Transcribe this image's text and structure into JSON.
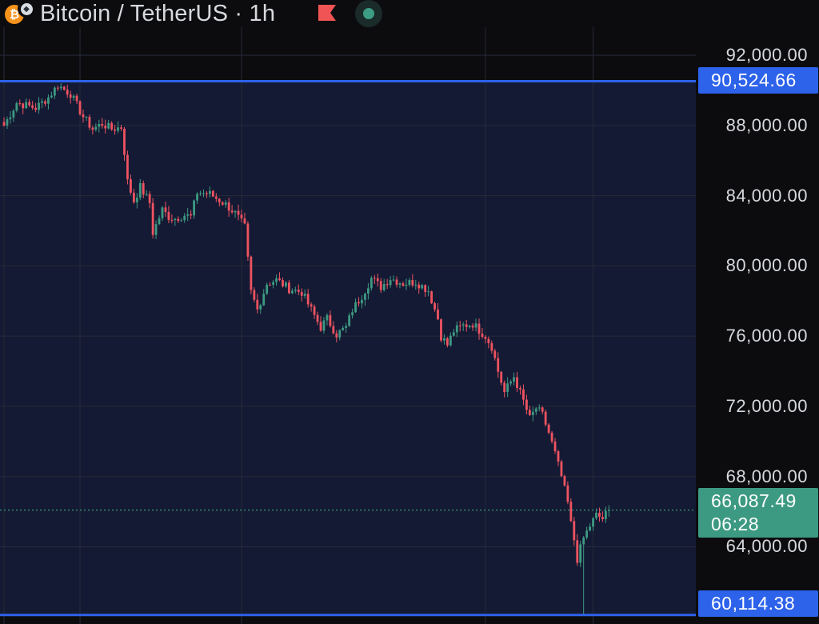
{
  "header": {
    "symbol": "Bitcoin / TetherUS",
    "interval": "1h",
    "title": "Bitcoin / TetherUS · 1h",
    "coin_icon": "bitcoin-icon",
    "badge_icon": "diamond-icon",
    "flag_icon": "flag-icon",
    "flag_color": "#f05454",
    "status_icon": "market-open-dot",
    "status_color": "#3d9c84"
  },
  "colors": {
    "background": "#0c0c0e",
    "highlight_zone": "#141a33",
    "up": "#3d9a82",
    "down": "#ef5361",
    "level_line": "#2d62ea",
    "grid": "#262b3a"
  },
  "price_labels": {
    "upper_level": "90,524.66",
    "lower_level": "60,114.38",
    "last_price": "66,087.49",
    "countdown": "06:28"
  },
  "chart_data": {
    "type": "candlestick",
    "title": "",
    "xlabel": "",
    "ylabel": "",
    "ylim": [
      59600,
      93600
    ],
    "grid": true,
    "y_ticks": [
      92000,
      88000,
      84000,
      80000,
      76000,
      72000,
      68000,
      64000
    ],
    "y_tick_labels": [
      "92,000.00",
      "88,000.00",
      "84,000.00",
      "80,000.00",
      "76,000.00",
      "72,000.00",
      "68,000.00",
      "64,000.00"
    ],
    "levels": [
      90524.66,
      60114.38
    ],
    "last_price": 66087.49,
    "x_ticks": [
      0,
      24,
      75,
      152,
      186
    ],
    "close_path": [
      [
        0,
        88000
      ],
      [
        4,
        89300
      ],
      [
        10,
        89000
      ],
      [
        14,
        89600
      ],
      [
        17,
        90300
      ],
      [
        21,
        89800
      ],
      [
        25,
        88500
      ],
      [
        28,
        87800
      ],
      [
        31,
        88100
      ],
      [
        34,
        87800
      ],
      [
        37,
        87900
      ],
      [
        38,
        86500
      ],
      [
        39,
        84800
      ],
      [
        41,
        83700
      ],
      [
        43,
        84500
      ],
      [
        46,
        83600
      ],
      [
        47,
        81900
      ],
      [
        50,
        83200
      ],
      [
        52,
        82800
      ],
      [
        54,
        82700
      ],
      [
        57,
        82900
      ],
      [
        59,
        82800
      ],
      [
        61,
        84200
      ],
      [
        65,
        84100
      ],
      [
        70,
        83500
      ],
      [
        73,
        83000
      ],
      [
        76,
        82200
      ],
      [
        78,
        78500
      ],
      [
        80,
        77500
      ],
      [
        83,
        79000
      ],
      [
        86,
        79200
      ],
      [
        90,
        78700
      ],
      [
        94,
        78500
      ],
      [
        97,
        77500
      ],
      [
        100,
        76500
      ],
      [
        102,
        77000
      ],
      [
        105,
        76100
      ],
      [
        108,
        76500
      ],
      [
        110,
        77500
      ],
      [
        113,
        78300
      ],
      [
        116,
        79300
      ],
      [
        119,
        78800
      ],
      [
        122,
        79300
      ],
      [
        126,
        79000
      ],
      [
        130,
        79100
      ],
      [
        134,
        78600
      ],
      [
        137,
        77000
      ],
      [
        138,
        76000
      ],
      [
        140,
        75500
      ],
      [
        142,
        76300
      ],
      [
        145,
        76600
      ],
      [
        148,
        76700
      ],
      [
        152,
        76000
      ],
      [
        154,
        75400
      ],
      [
        156,
        74000
      ],
      [
        158,
        72800
      ],
      [
        161,
        73700
      ],
      [
        164,
        72300
      ],
      [
        166,
        71300
      ],
      [
        168,
        71900
      ],
      [
        170,
        71500
      ],
      [
        172,
        70500
      ],
      [
        174,
        69300
      ],
      [
        176,
        68000
      ],
      [
        178,
        66500
      ],
      [
        179,
        65300
      ],
      [
        180,
        64400
      ],
      [
        181,
        63300
      ],
      [
        183,
        64500
      ],
      [
        185,
        65200
      ],
      [
        187,
        65800
      ],
      [
        189,
        65600
      ],
      [
        191,
        66087.49
      ]
    ]
  }
}
